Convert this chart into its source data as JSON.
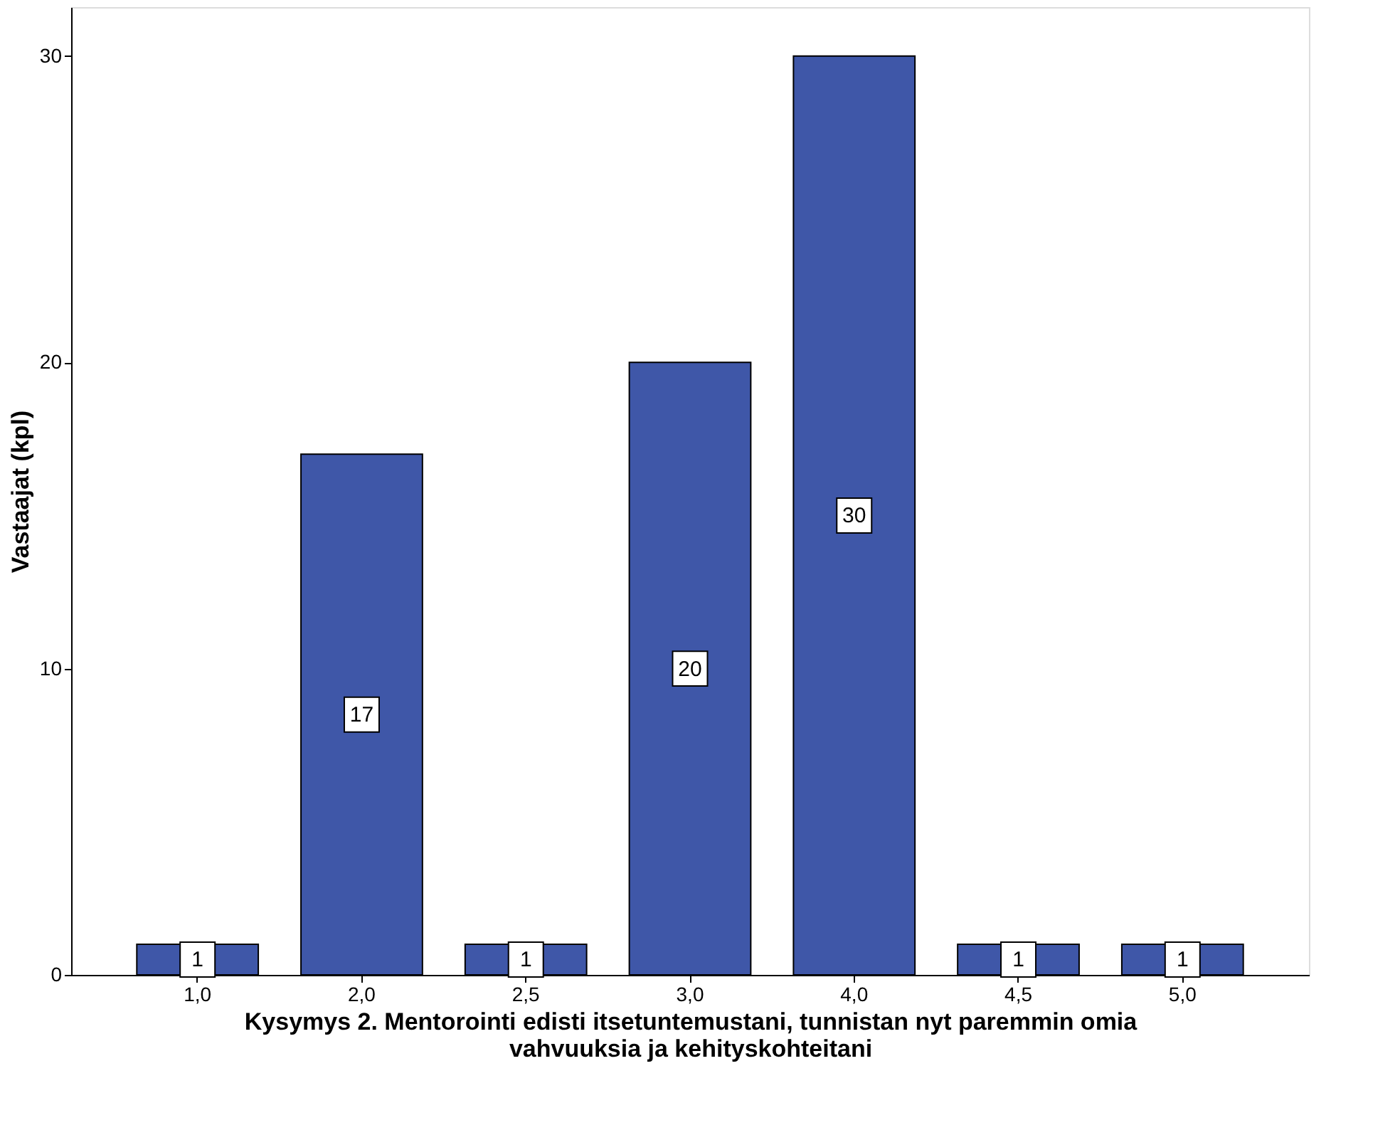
{
  "chart_data": {
    "type": "bar",
    "xlabel": "Kysymys 2. Mentorointi edisti itsetuntemustani, tunnistan nyt paremmin omia vahvuuksia ja kehityskohteitani",
    "ylabel": "Vastaajat (kpl)",
    "categories": [
      "1,0",
      "2,0",
      "2,5",
      "3,0",
      "4,0",
      "4,5",
      "5,0"
    ],
    "values": [
      1,
      17,
      1,
      20,
      30,
      1,
      1
    ],
    "color": "#3f57a8",
    "ylim": [
      0,
      31.6
    ],
    "yticks": [
      0,
      10,
      20,
      30
    ],
    "grid": false,
    "data_labels": true
  }
}
